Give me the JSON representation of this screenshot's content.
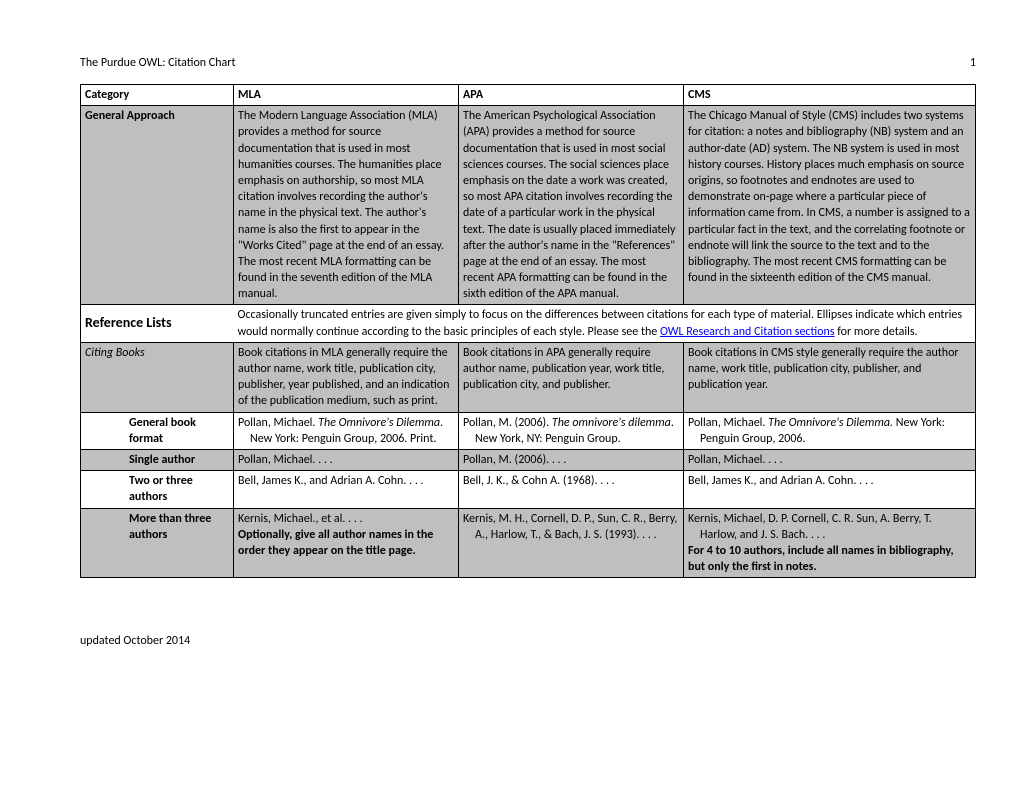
{
  "header": {
    "title": "The Purdue OWL: Citation Chart",
    "page": "1"
  },
  "footer": {
    "text": "updated October 2014"
  },
  "cols": {
    "category": "Category",
    "mla": "MLA",
    "apa": "APA",
    "cms": "CMS"
  },
  "general": {
    "label": "General Approach",
    "mla": "The Modern Language Association (MLA) provides a method for source documentation that is used in most humanities courses. The humanities place emphasis on authorship, so most MLA citation involves recording the author's name in the physical text. The author's name is also the first to appear in the \"Works Cited\" page at the end of an essay. The most recent MLA formatting can be found in the seventh edition of the MLA manual.",
    "apa": "The American Psychological Association (APA) provides a method for source documentation that is used in most social sciences courses. The social sciences place emphasis on the date a work was created, so most APA citation involves recording the date of a particular work in the physical text. The date is usually placed immediately after the author's name in the \"References\" page at the end of an essay. The most recent APA formatting can be found in the sixth edition of the APA manual.",
    "cms": "The Chicago Manual of Style (CMS) includes two systems for citation: a notes and bibliography (NB) system and an author-date (AD) system. The NB system is used in most history courses. History places much emphasis on source origins, so footnotes and endnotes are used to demonstrate on-page where a particular piece of information came from. In CMS, a number is assigned to a particular fact in the text, and the correlating footnote or endnote will link the source to the text and to the bibliography. The most recent CMS formatting can be found in the sixteenth edition of the CMS manual."
  },
  "reflists": {
    "title": "Reference Lists",
    "note_a": "Occasionally truncated entries are given simply to focus on the differences between citations for each type of material. Ellipses indicate which entries would normally continue according to the basic principles of each style. Please see the ",
    "link": "OWL Research and Citation sections",
    "note_b": " for more details."
  },
  "citingbooks": {
    "label": "Citing Books",
    "mla": "Book citations in MLA generally require the author name, work title, publication city, publisher, year published, and an indication of the publication medium, such as print.",
    "apa": "Book citations in APA generally require author name, publication year, work title, publication city, and publisher.",
    "cms": "Book citations in CMS style generally require the author name, work title, publication city, publisher, and publication year."
  },
  "genbook": {
    "label": "General book format",
    "mla_a": "Pollan, Michael. ",
    "mla_i": "The Omnivore's Dilemma",
    "mla_b": ". New York: Penguin Group, 2006. Print.",
    "apa_a": "Pollan, M. (2006). ",
    "apa_i": "The omnivore's dilemma",
    "apa_b": ". New York, NY: Penguin Group.",
    "cms_a": "Pollan, Michael. ",
    "cms_i": "The Omnivore's Dilemma.",
    "cms_b": " New York: Penguin Group, 2006."
  },
  "single": {
    "label": "Single author",
    "mla": "Pollan, Michael. . . .",
    "apa": "Pollan, M. (2006). . . .",
    "cms": "Pollan, Michael. . . ."
  },
  "twothree": {
    "label": "Two or three authors",
    "mla": "Bell, James K., and Adrian A. Cohn. . . .",
    "apa": "Bell, J. K., & Cohn A. (1968). . . .",
    "cms": "Bell, James K., and Adrian A. Cohn. . . ."
  },
  "morethree": {
    "label": "More than three authors",
    "mla_a": "Kernis, Michael., et al. . . .",
    "mla_b": "Optionally, give all author names in the order they appear on the title page.",
    "apa": "Kernis, M. H., Cornell, D. P., Sun, C. R., Berry, A., Harlow, T., & Bach, J. S. (1993). . . .",
    "cms_a": "Kernis, Michael, D. P. Cornell, C. R. Sun, A. Berry, T. Harlow, and J. S. Bach. . . .",
    "cms_b": "For 4 to 10 authors, include all names in bibliography, but only the first in notes."
  }
}
